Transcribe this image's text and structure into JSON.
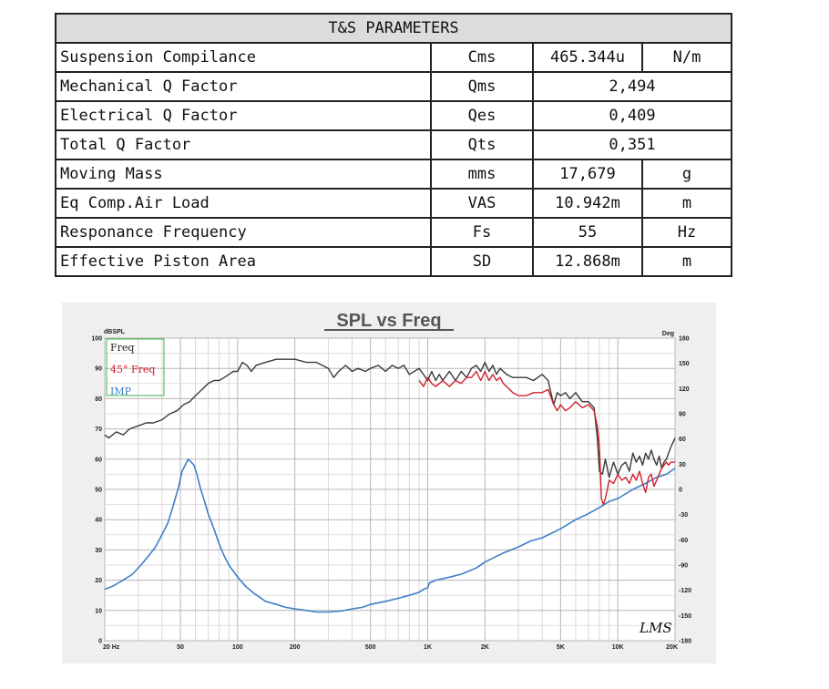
{
  "table": {
    "header": "T&S PARAMETERS",
    "rows": [
      {
        "name": "Suspension Compilance",
        "symbol": "Cms",
        "value": "465.344u",
        "unit": "N/m"
      },
      {
        "name": "Mechanical Q Factor",
        "symbol": "Qms",
        "value": "2,494",
        "unit": ""
      },
      {
        "name": "Electrical Q Factor",
        "symbol": "Qes",
        "value": "0,409",
        "unit": ""
      },
      {
        "name": "Total Q Factor",
        "symbol": "Qts",
        "value": "0,351",
        "unit": ""
      },
      {
        "name": "Moving Mass",
        "symbol": "mms",
        "value": "17,679",
        "unit": "g"
      },
      {
        "name": "Eq Comp.Air Load",
        "symbol": "VAS",
        "value": "10.942m",
        "unit": "m"
      },
      {
        "name": "Responance Frequency",
        "symbol": "Fs",
        "value": "55",
        "unit": "Hz"
      },
      {
        "name": "Effective Piston Area",
        "symbol": "SD",
        "value": "12.868m",
        "unit": "m"
      }
    ]
  },
  "chart_data": {
    "type": "line",
    "title": "SPL vs Freq",
    "ylabel": "dBSPL",
    "y2label": "Deg",
    "x_scale": "log",
    "xlim": [
      20,
      20000
    ],
    "ylim": [
      0,
      100
    ],
    "y2lim": [
      -180,
      180
    ],
    "grid": true,
    "legend_position": "top-left",
    "watermark": "LMS",
    "x_ticks": [
      {
        "v": 20,
        "label": "20 Hz"
      },
      {
        "v": 50,
        "label": "50"
      },
      {
        "v": 100,
        "label": "100"
      },
      {
        "v": 200,
        "label": "200"
      },
      {
        "v": 500,
        "label": "500"
      },
      {
        "v": 1000,
        "label": "1K"
      },
      {
        "v": 2000,
        "label": "2K"
      },
      {
        "v": 5000,
        "label": "5K"
      },
      {
        "v": 10000,
        "label": "10K"
      },
      {
        "v": 20000,
        "label": "20K"
      }
    ],
    "y_ticks": [
      0,
      10,
      20,
      30,
      40,
      50,
      60,
      70,
      80,
      90,
      100
    ],
    "y2_ticks": [
      -180,
      -150,
      -120,
      -90,
      -60,
      -30,
      0,
      30,
      60,
      90,
      120,
      150,
      180
    ],
    "series": [
      {
        "name": "Freq",
        "color": "#3a3a3a",
        "points": [
          [
            20,
            68
          ],
          [
            21,
            67
          ],
          [
            23,
            69
          ],
          [
            25,
            68
          ],
          [
            27,
            70
          ],
          [
            30,
            71
          ],
          [
            33,
            72
          ],
          [
            36,
            72
          ],
          [
            40,
            73
          ],
          [
            44,
            75
          ],
          [
            48,
            76
          ],
          [
            52,
            78
          ],
          [
            56,
            79
          ],
          [
            60,
            81
          ],
          [
            65,
            83
          ],
          [
            70,
            85
          ],
          [
            75,
            86
          ],
          [
            80,
            86
          ],
          [
            85,
            87
          ],
          [
            90,
            88
          ],
          [
            95,
            89
          ],
          [
            100,
            89
          ],
          [
            106,
            92
          ],
          [
            112,
            91
          ],
          [
            118,
            89
          ],
          [
            125,
            91
          ],
          [
            140,
            92
          ],
          [
            160,
            93
          ],
          [
            180,
            93
          ],
          [
            200,
            93
          ],
          [
            230,
            92
          ],
          [
            260,
            92
          ],
          [
            300,
            90
          ],
          [
            320,
            87
          ],
          [
            340,
            89
          ],
          [
            370,
            91
          ],
          [
            400,
            89
          ],
          [
            430,
            90
          ],
          [
            470,
            89
          ],
          [
            500,
            90
          ],
          [
            550,
            91
          ],
          [
            600,
            89
          ],
          [
            650,
            91
          ],
          [
            700,
            90
          ],
          [
            750,
            91
          ],
          [
            800,
            88
          ],
          [
            850,
            89
          ],
          [
            900,
            90
          ],
          [
            950,
            88
          ],
          [
            1000,
            86
          ],
          [
            1050,
            89
          ],
          [
            1100,
            86
          ],
          [
            1150,
            88
          ],
          [
            1200,
            86
          ],
          [
            1300,
            89
          ],
          [
            1400,
            86
          ],
          [
            1500,
            89
          ],
          [
            1600,
            87
          ],
          [
            1700,
            90
          ],
          [
            1800,
            91
          ],
          [
            1900,
            89
          ],
          [
            2000,
            92
          ],
          [
            2100,
            89
          ],
          [
            2200,
            91
          ],
          [
            2300,
            88
          ],
          [
            2400,
            90
          ],
          [
            2600,
            88
          ],
          [
            2800,
            87
          ],
          [
            3000,
            87
          ],
          [
            3300,
            87
          ],
          [
            3600,
            86
          ],
          [
            4000,
            88
          ],
          [
            4300,
            86
          ],
          [
            4600,
            78
          ],
          [
            4800,
            82
          ],
          [
            5000,
            81
          ],
          [
            5300,
            82
          ],
          [
            5600,
            80
          ],
          [
            6000,
            82
          ],
          [
            6500,
            79
          ],
          [
            7000,
            79
          ],
          [
            7500,
            77
          ],
          [
            7800,
            67
          ],
          [
            8000,
            56
          ],
          [
            8300,
            55
          ],
          [
            8600,
            60
          ],
          [
            9000,
            54
          ],
          [
            9500,
            59
          ],
          [
            10000,
            55
          ],
          [
            10500,
            58
          ],
          [
            11000,
            59
          ],
          [
            11500,
            56
          ],
          [
            12000,
            62
          ],
          [
            12500,
            59
          ],
          [
            13000,
            61
          ],
          [
            13500,
            58
          ],
          [
            14000,
            62
          ],
          [
            14500,
            60
          ],
          [
            15000,
            63
          ],
          [
            15500,
            60
          ],
          [
            16000,
            58
          ],
          [
            16500,
            61
          ],
          [
            17000,
            57
          ],
          [
            17500,
            59
          ],
          [
            18000,
            60
          ],
          [
            18500,
            62
          ],
          [
            19000,
            64
          ],
          [
            20000,
            67
          ]
        ]
      },
      {
        "name": "45° Freq",
        "color": "#d0202e",
        "points": [
          [
            900,
            86
          ],
          [
            950,
            84
          ],
          [
            1000,
            87
          ],
          [
            1050,
            85
          ],
          [
            1100,
            84
          ],
          [
            1150,
            85
          ],
          [
            1200,
            86
          ],
          [
            1300,
            84
          ],
          [
            1400,
            86
          ],
          [
            1500,
            85
          ],
          [
            1600,
            87
          ],
          [
            1700,
            87
          ],
          [
            1800,
            89
          ],
          [
            1900,
            86
          ],
          [
            2000,
            89
          ],
          [
            2100,
            86
          ],
          [
            2200,
            88
          ],
          [
            2300,
            86
          ],
          [
            2400,
            87
          ],
          [
            2500,
            85
          ],
          [
            2600,
            84
          ],
          [
            2700,
            83
          ],
          [
            2800,
            82
          ],
          [
            3000,
            81
          ],
          [
            3300,
            81
          ],
          [
            3600,
            82
          ],
          [
            4000,
            82
          ],
          [
            4300,
            83
          ],
          [
            4600,
            78
          ],
          [
            4800,
            76
          ],
          [
            5000,
            78
          ],
          [
            5300,
            76
          ],
          [
            5600,
            77
          ],
          [
            6000,
            79
          ],
          [
            6500,
            77
          ],
          [
            7000,
            78
          ],
          [
            7500,
            76
          ],
          [
            7800,
            71
          ],
          [
            8000,
            64
          ],
          [
            8200,
            47
          ],
          [
            8400,
            45
          ],
          [
            8600,
            47
          ],
          [
            8800,
            50
          ],
          [
            9000,
            53
          ],
          [
            9500,
            52
          ],
          [
            10000,
            55
          ],
          [
            10500,
            53
          ],
          [
            11000,
            54
          ],
          [
            11500,
            52
          ],
          [
            12000,
            55
          ],
          [
            12500,
            53
          ],
          [
            13000,
            56
          ],
          [
            13500,
            52
          ],
          [
            14000,
            49
          ],
          [
            14500,
            54
          ],
          [
            15000,
            55
          ],
          [
            15500,
            51
          ],
          [
            16000,
            53
          ],
          [
            16500,
            55
          ],
          [
            17000,
            57
          ],
          [
            17500,
            58
          ],
          [
            18000,
            59
          ],
          [
            18500,
            58
          ],
          [
            19000,
            59
          ],
          [
            20000,
            59
          ]
        ]
      },
      {
        "name": "IMP",
        "color": "#3f7ec6",
        "points": [
          [
            20,
            17
          ],
          [
            22,
            18
          ],
          [
            25,
            20
          ],
          [
            28,
            22
          ],
          [
            31,
            25
          ],
          [
            34,
            28
          ],
          [
            37,
            31
          ],
          [
            40,
            35
          ],
          [
            43,
            39
          ],
          [
            46,
            45
          ],
          [
            49,
            51
          ],
          [
            51,
            56
          ],
          [
            53,
            58
          ],
          [
            55,
            60
          ],
          [
            57,
            59
          ],
          [
            59,
            58
          ],
          [
            61,
            55
          ],
          [
            64,
            50
          ],
          [
            67,
            46
          ],
          [
            70,
            42
          ],
          [
            75,
            37
          ],
          [
            80,
            32
          ],
          [
            85,
            28
          ],
          [
            90,
            25
          ],
          [
            100,
            21
          ],
          [
            110,
            18
          ],
          [
            120,
            16
          ],
          [
            140,
            13
          ],
          [
            160,
            12
          ],
          [
            180,
            11
          ],
          [
            200,
            10.5
          ],
          [
            230,
            10
          ],
          [
            260,
            9.5
          ],
          [
            300,
            9.5
          ],
          [
            350,
            9.8
          ],
          [
            400,
            10.5
          ],
          [
            450,
            11
          ],
          [
            500,
            12
          ],
          [
            600,
            13
          ],
          [
            700,
            14
          ],
          [
            800,
            15
          ],
          [
            900,
            16
          ],
          [
            950,
            17
          ],
          [
            1000,
            17.5
          ],
          [
            1020,
            19
          ],
          [
            1100,
            20
          ],
          [
            1300,
            21
          ],
          [
            1500,
            22
          ],
          [
            1800,
            24
          ],
          [
            2000,
            26
          ],
          [
            2500,
            29
          ],
          [
            3000,
            31
          ],
          [
            3500,
            33
          ],
          [
            4000,
            34
          ],
          [
            5000,
            37
          ],
          [
            6000,
            40
          ],
          [
            7000,
            42
          ],
          [
            8000,
            44
          ],
          [
            9000,
            46
          ],
          [
            10000,
            47
          ],
          [
            12000,
            50
          ],
          [
            14000,
            52
          ],
          [
            16000,
            54
          ],
          [
            18000,
            55
          ],
          [
            20000,
            57
          ]
        ]
      }
    ]
  }
}
